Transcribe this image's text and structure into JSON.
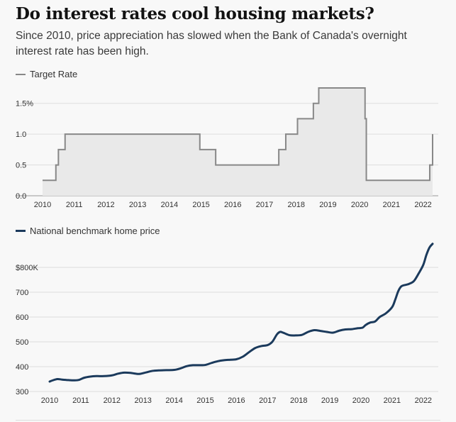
{
  "title": "Do interest rates cool housing markets?",
  "subtitle": "Since 2010, price appreciation has slowed when the Bank of Canada's overnight interest rate has been high.",
  "colors": {
    "rate_line": "#888888",
    "rate_fill": "#e9e9e9",
    "price_line": "#1b3a5c",
    "grid": "#dddddd"
  },
  "chart_data": [
    {
      "type": "area",
      "legend": "Target Rate",
      "x_ticks": [
        "2010",
        "2011",
        "2012",
        "2013",
        "2014",
        "2015",
        "2016",
        "2017",
        "2018",
        "2019",
        "2020",
        "2021",
        "2022"
      ],
      "y_ticks": [
        "0.0",
        "0.5",
        "1.0",
        "1.5%"
      ],
      "ylim": [
        0,
        1.75
      ],
      "xlim": [
        2010.0,
        2022.3
      ],
      "grid": true,
      "step": true,
      "series": [
        {
          "name": "Target Rate",
          "x": [
            2010.0,
            2010.42,
            2010.5,
            2010.58,
            2010.71,
            2014.96,
            2015.46,
            2017.45,
            2017.67,
            2017.86,
            2018.04,
            2018.54,
            2018.71,
            2020.17,
            2020.21,
            2022.04,
            2022.21,
            2022.3
          ],
          "values": [
            0.25,
            0.5,
            0.75,
            0.75,
            1.0,
            0.75,
            0.5,
            0.75,
            1.0,
            1.0,
            1.25,
            1.5,
            1.75,
            1.25,
            0.25,
            0.25,
            0.5,
            1.0
          ]
        }
      ]
    },
    {
      "type": "line",
      "legend": "National benchmark home price",
      "x_ticks": [
        "2010",
        "2011",
        "2012",
        "2013",
        "2014",
        "2015",
        "2016",
        "2017",
        "2018",
        "2019",
        "2020",
        "2021",
        "2022"
      ],
      "y_ticks": [
        "300",
        "400",
        "500",
        "600",
        "700",
        "$800K"
      ],
      "ylim": [
        300,
        900
      ],
      "xlim": [
        2010.0,
        2022.3
      ],
      "grid": true,
      "series": [
        {
          "name": "National benchmark home price",
          "x": [
            2010.0,
            2010.1,
            2010.25,
            2010.4,
            2010.6,
            2010.8,
            2010.95,
            2011.1,
            2011.3,
            2011.5,
            2011.75,
            2012.0,
            2012.2,
            2012.4,
            2012.6,
            2012.75,
            2012.9,
            2013.1,
            2013.3,
            2013.5,
            2013.75,
            2014.0,
            2014.2,
            2014.4,
            2014.6,
            2014.8,
            2015.0,
            2015.2,
            2015.4,
            2015.6,
            2015.8,
            2016.0,
            2016.2,
            2016.4,
            2016.6,
            2016.8,
            2017.0,
            2017.15,
            2017.3,
            2017.4,
            2017.5,
            2017.7,
            2017.9,
            2018.1,
            2018.3,
            2018.5,
            2018.7,
            2018.9,
            2019.1,
            2019.3,
            2019.5,
            2019.7,
            2019.9,
            2020.05,
            2020.15,
            2020.3,
            2020.45,
            2020.6,
            2020.8,
            2021.0,
            2021.1,
            2021.2,
            2021.3,
            2021.45,
            2021.55,
            2021.7,
            2021.85,
            2022.0,
            2022.1,
            2022.2,
            2022.3
          ],
          "values": [
            340,
            345,
            350,
            348,
            346,
            345,
            347,
            355,
            360,
            362,
            362,
            365,
            372,
            376,
            375,
            372,
            371,
            377,
            383,
            385,
            386,
            387,
            393,
            402,
            406,
            406,
            407,
            415,
            422,
            426,
            428,
            430,
            440,
            458,
            475,
            483,
            487,
            500,
            530,
            540,
            537,
            527,
            526,
            528,
            540,
            547,
            544,
            540,
            537,
            545,
            550,
            551,
            555,
            557,
            568,
            578,
            582,
            600,
            615,
            640,
            670,
            705,
            724,
            730,
            734,
            745,
            775,
            810,
            850,
            880,
            895
          ]
        }
      ]
    }
  ]
}
